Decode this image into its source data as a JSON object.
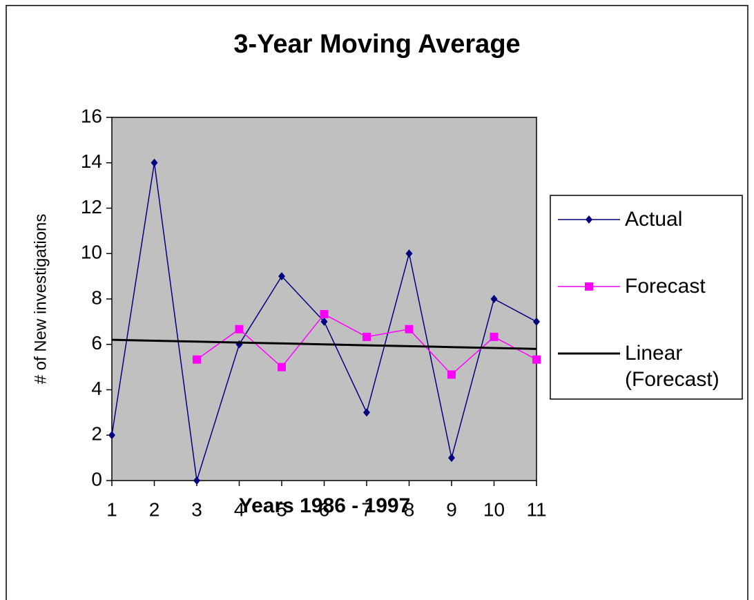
{
  "chart_data": {
    "type": "line",
    "title": "3-Year Moving Average",
    "x_label": "Years 1986 - 1997",
    "y_label": "# of New investigations",
    "x": [
      1,
      2,
      3,
      4,
      5,
      6,
      7,
      8,
      9,
      10,
      11
    ],
    "xlim": [
      1,
      11
    ],
    "xticks": [
      1,
      2,
      3,
      4,
      5,
      6,
      7,
      8,
      9,
      10,
      11
    ],
    "ylim": [
      0,
      16
    ],
    "yticks": [
      0,
      2,
      4,
      6,
      8,
      10,
      12,
      14,
      16
    ],
    "grid": false,
    "legend": "right",
    "background": "#c0c0c0",
    "series": [
      {
        "name": "Actual",
        "color": "#000080",
        "marker": "diamond",
        "values": [
          2,
          14,
          0,
          6,
          9,
          7,
          3,
          10,
          1,
          8,
          7
        ]
      },
      {
        "name": "Forecast",
        "color": "#ff00ff",
        "marker": "square",
        "values": [
          null,
          null,
          5.33,
          6.67,
          5,
          7.33,
          6.33,
          6.67,
          4.67,
          6.33,
          5.33
        ]
      },
      {
        "name": "Linear (Forecast)",
        "color": "#000000",
        "marker": "none",
        "values": [
          6.2,
          6.16,
          6.12,
          6.08,
          6.04,
          6.0,
          5.96,
          5.92,
          5.88,
          5.84,
          5.8
        ]
      }
    ]
  }
}
